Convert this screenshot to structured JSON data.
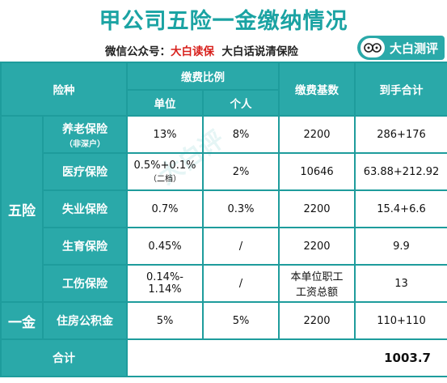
{
  "title": "甲公司五险一金缴纳情况",
  "subtitle": {
    "prefix": "微信公众号：",
    "highlight": "大白读保",
    "suffix": "大白话说清保险"
  },
  "badge": {
    "label": "大白测评",
    "icon": "cartoon-face-icon"
  },
  "watermark": "大白评",
  "colors": {
    "teal": "#2aa9a9",
    "border": "#1e9c9c",
    "red": "#d8201c"
  },
  "headers": {
    "type": "险种",
    "ratio": "缴费比例",
    "unit": "单位",
    "personal": "个人",
    "base": "缴费基数",
    "net": "到手合计"
  },
  "group_wuxian": "五险",
  "group_yijin": "一金",
  "rows": [
    {
      "name": "养老保险",
      "note": "（非深户）",
      "unit": "13%",
      "unit_note": "",
      "personal": "8%",
      "base": "2200",
      "net": "286+176"
    },
    {
      "name": "医疗保险",
      "note": "",
      "unit": "0.5%+0.1%",
      "unit_note": "（二档）",
      "personal": "2%",
      "base": "10646",
      "net": "63.88+212.92"
    },
    {
      "name": "失业保险",
      "note": "",
      "unit": "0.7%",
      "unit_note": "",
      "personal": "0.3%",
      "base": "2200",
      "net": "15.4+6.6"
    },
    {
      "name": "生育保险",
      "note": "",
      "unit": "0.45%",
      "unit_note": "",
      "personal": "/",
      "base": "2200",
      "net": "9.9"
    },
    {
      "name": "工伤保险",
      "note": "",
      "unit": "0.14%-\n1.14%",
      "unit_note": "",
      "personal": "/",
      "base": "本单位职工\n工资总额",
      "net": "13"
    },
    {
      "name": "住房公积金",
      "note": "",
      "unit": "5%",
      "unit_note": "",
      "personal": "5%",
      "base": "2200",
      "net": "110+110"
    }
  ],
  "total": {
    "label": "合计",
    "value": "1003.7"
  }
}
